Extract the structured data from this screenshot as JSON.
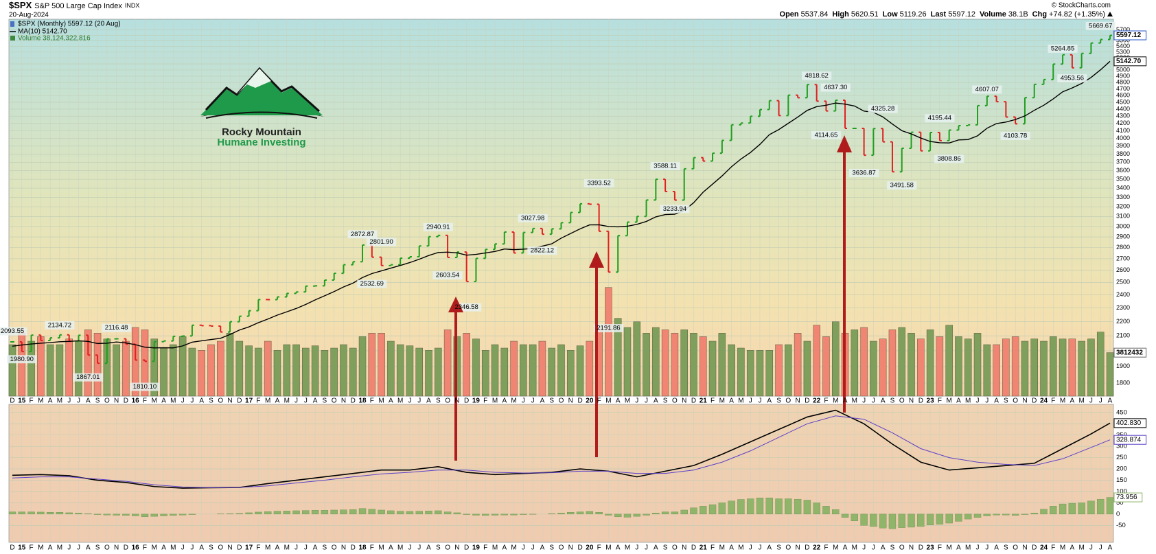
{
  "header": {
    "symbol": "$SPX",
    "name": "S&P 500 Large Cap Index",
    "exchange": "INDX",
    "date": "20-Aug-2024",
    "copyright": "© StockCharts.com",
    "quote": [
      {
        "label": "Open",
        "value": "5537.84"
      },
      {
        "label": "High",
        "value": "5620.51"
      },
      {
        "label": "Low",
        "value": "5119.26"
      },
      {
        "label": "Last",
        "value": "5597.12"
      },
      {
        "label": "Volume",
        "value": "38.1B"
      },
      {
        "label": "Chg",
        "value": "+74.82 (+1.35%)"
      }
    ]
  },
  "logo": {
    "line1": "Rocky Mountain",
    "line2": "Humane Investing"
  },
  "chart_data": [
    {
      "type": "ohlc",
      "title": "$SPX (Monthly) 5597.12 (20 Aug)",
      "log_scale": true,
      "grid": true,
      "up_color": "#1f9e1f",
      "down_color": "#e02020",
      "last_label": "5597.12",
      "categories": [
        "D",
        "15",
        "F",
        "M",
        "A",
        "M",
        "J",
        "J",
        "A",
        "S",
        "O",
        "N",
        "D",
        "16",
        "F",
        "M",
        "A",
        "M",
        "J",
        "J",
        "A",
        "S",
        "O",
        "N",
        "D",
        "17",
        "F",
        "M",
        "A",
        "M",
        "J",
        "J",
        "A",
        "S",
        "O",
        "N",
        "D",
        "18",
        "F",
        "M",
        "A",
        "M",
        "J",
        "J",
        "A",
        "S",
        "O",
        "N",
        "D",
        "19",
        "F",
        "M",
        "A",
        "M",
        "J",
        "J",
        "A",
        "S",
        "O",
        "N",
        "D",
        "20",
        "F",
        "M",
        "A",
        "M",
        "J",
        "J",
        "A",
        "S",
        "O",
        "N",
        "D",
        "21",
        "F",
        "M",
        "A",
        "M",
        "J",
        "J",
        "A",
        "S",
        "O",
        "N",
        "D",
        "22",
        "F",
        "M",
        "A",
        "M",
        "J",
        "J",
        "A",
        "S",
        "O",
        "N",
        "D",
        "23",
        "F",
        "M",
        "A",
        "M",
        "J",
        "J",
        "A",
        "S",
        "O",
        "N",
        "D",
        "24",
        "F",
        "M",
        "A",
        "M",
        "J",
        "J",
        "A"
      ],
      "close": [
        2059,
        1995,
        2105,
        2068,
        2086,
        2107,
        2063,
        2104,
        1972,
        1920,
        2079,
        2080,
        2044,
        1940,
        1932,
        2060,
        2065,
        2097,
        2099,
        2174,
        2171,
        2168,
        2126,
        2199,
        2239,
        2279,
        2364,
        2363,
        2384,
        2412,
        2423,
        2470,
        2472,
        2519,
        2575,
        2648,
        2674,
        2824,
        2714,
        2641,
        2648,
        2705,
        2718,
        2816,
        2902,
        2914,
        2712,
        2760,
        2507,
        2704,
        2784,
        2834,
        2946,
        2752,
        2942,
        2980,
        2926,
        2977,
        3038,
        3141,
        3231,
        3226,
        2954,
        2585,
        2912,
        3044,
        3100,
        3271,
        3500,
        3363,
        3270,
        3622,
        3756,
        3714,
        3811,
        3973,
        4181,
        4204,
        4298,
        4395,
        4523,
        4308,
        4605,
        4567,
        4766,
        4516,
        4374,
        4530,
        4132,
        4132,
        3785,
        4130,
        3955,
        3586,
        3872,
        4080,
        3840,
        4077,
        3970,
        4109,
        4169,
        4180,
        4450,
        4589,
        4508,
        4288,
        4194,
        4568,
        4770,
        4846,
        5096,
        5254,
        5036,
        5278,
        5460,
        5522,
        5597.12
      ],
      "series": [
        {
          "name": "MA(10) 5142.70",
          "value_label": "5142.70",
          "color": "#000000",
          "values": [
            2030,
            2038,
            2045,
            2050,
            2054,
            2060,
            2062,
            2066,
            2062,
            2048,
            2050,
            2058,
            2052,
            2040,
            2024,
            2019,
            2020,
            2019,
            2032,
            2057,
            2066,
            2075,
            2083,
            2109,
            2140,
            2162,
            2192,
            2218,
            2247,
            2271,
            2296,
            2326,
            2361,
            2393,
            2426,
            2463,
            2494,
            2540,
            2573,
            2596,
            2619,
            2642,
            2667,
            2696,
            2729,
            2756,
            2759,
            2753,
            2732,
            2739,
            2752,
            2765,
            2788,
            2782,
            2786,
            2792,
            2814,
            2835,
            2888,
            2932,
            2977,
            3016,
            3017,
            3000,
            2997,
            3003,
            3021,
            3050,
            3096,
            3119,
            3123,
            3162,
            3242,
            3355,
            3445,
            3538,
            3646,
            3739,
            3819,
            3922,
            4048,
            4116,
            4201,
            4287,
            4382,
            4436,
            4456,
            4488,
            4472,
            4445,
            4372,
            4354,
            4289,
            4191,
            4101,
            4058,
            4004,
            3959,
            3943,
            3940,
            3979,
            3984,
            4033,
            4134,
            4197,
            4218,
            4253,
            4303,
            4383,
            4456,
            4549,
            4656,
            4715,
            4784,
            4879,
            5002,
            5142.7
          ]
        }
      ],
      "volume": {
        "name": "Volume 38,124,322,816",
        "value_label": "3812432",
        "up_color": "#7f9f5c",
        "down_color": "#ef8572",
        "vlim": [
          0,
          120
        ],
        "values": [
          45,
          55,
          48,
          52,
          45,
          45,
          50,
          48,
          58,
          55,
          50,
          45,
          48,
          60,
          58,
          50,
          42,
          45,
          52,
          42,
          40,
          45,
          48,
          55,
          48,
          44,
          42,
          48,
          40,
          45,
          45,
          42,
          44,
          40,
          42,
          45,
          42,
          52,
          55,
          55,
          48,
          45,
          44,
          42,
          40,
          42,
          58,
          52,
          55,
          50,
          40,
          45,
          42,
          48,
          45,
          45,
          48,
          42,
          45,
          40,
          44,
          48,
          60,
          95,
          68,
          60,
          65,
          55,
          60,
          58,
          55,
          58,
          55,
          52,
          48,
          55,
          45,
          42,
          40,
          40,
          40,
          45,
          45,
          55,
          48,
          62,
          52,
          65,
          55,
          58,
          60,
          48,
          50,
          58,
          60,
          55,
          50,
          58,
          52,
          62,
          52,
          50,
          55,
          45,
          45,
          50,
          52,
          48,
          50,
          48,
          52,
          50,
          50,
          48,
          50,
          56,
          38
        ]
      },
      "ylim": [
        1725,
        5900
      ],
      "yticks": [
        1800,
        1900,
        2000,
        2100,
        2200,
        2300,
        2400,
        2500,
        2600,
        2700,
        2800,
        2900,
        3000,
        3100,
        3200,
        3300,
        3400,
        3500,
        3600,
        3700,
        3800,
        3900,
        4000,
        4100,
        4200,
        4300,
        4400,
        4500,
        4600,
        4700,
        4800,
        4900,
        5000,
        5100,
        5200,
        5300,
        5400,
        5500,
        5600,
        5700
      ],
      "annotations": [
        {
          "x": 0,
          "value": 2093.55,
          "label": "2093.55"
        },
        {
          "x": 1,
          "value": 1980.9,
          "label": "1980.90"
        },
        {
          "x": 5,
          "value": 2134.72,
          "label": "2134.72"
        },
        {
          "x": 8,
          "value": 1867.01,
          "label": "1867.01"
        },
        {
          "x": 11,
          "value": 2116.48,
          "label": "2116.48"
        },
        {
          "x": 14,
          "value": 1810.1,
          "label": "1810.10"
        },
        {
          "x": 37,
          "value": 2872.87,
          "label": "2872.87"
        },
        {
          "x": 38,
          "value": 2532.69,
          "label": "2532.69"
        },
        {
          "x": 39,
          "value": 2801.9,
          "label": "2801.90"
        },
        {
          "x": 45,
          "value": 2940.91,
          "label": "2940.91"
        },
        {
          "x": 46,
          "value": 2603.54,
          "label": "2603.54"
        },
        {
          "x": 48,
          "value": 2346.58,
          "label": "2346.58"
        },
        {
          "x": 55,
          "value": 3027.98,
          "label": "3027.98"
        },
        {
          "x": 56,
          "value": 2822.12,
          "label": "2822.12"
        },
        {
          "x": 62,
          "value": 3393.52,
          "label": "3393.52"
        },
        {
          "x": 63,
          "value": 2191.86,
          "label": "2191.86"
        },
        {
          "x": 69,
          "value": 3588.11,
          "label": "3588.11"
        },
        {
          "x": 70,
          "value": 3233.94,
          "label": "3233.94"
        },
        {
          "x": 85,
          "value": 4818.62,
          "label": "4818.62"
        },
        {
          "x": 86,
          "value": 4114.65,
          "label": "4114.65"
        },
        {
          "x": 87,
          "value": 4637.3,
          "label": "4637.30"
        },
        {
          "x": 90,
          "value": 3636.87,
          "label": "3636.87"
        },
        {
          "x": 92,
          "value": 4325.28,
          "label": "4325.28"
        },
        {
          "x": 94,
          "value": 3491.58,
          "label": "3491.58"
        },
        {
          "x": 98,
          "value": 4195.44,
          "label": "4195.44"
        },
        {
          "x": 99,
          "value": 3808.86,
          "label": "3808.86"
        },
        {
          "x": 103,
          "value": 4607.07,
          "label": "4607.07"
        },
        {
          "x": 106,
          "value": 4103.78,
          "label": "4103.78"
        },
        {
          "x": 111,
          "value": 5264.85,
          "label": "5264.85"
        },
        {
          "x": 112,
          "value": 4953.56,
          "label": "4953.56"
        },
        {
          "x": 115,
          "value": 5669.67,
          "label": "5669.67"
        }
      ]
    },
    {
      "type": "line",
      "grid": true,
      "ylim": [
        -125,
        486
      ],
      "yticks": [
        -50,
        0,
        50,
        100,
        150,
        200,
        250,
        300,
        350,
        400,
        450
      ],
      "series": [
        {
          "color": "#000000",
          "value_label": "402.830",
          "x": [
            0,
            3,
            6,
            9,
            12,
            15,
            18,
            21,
            24,
            27,
            30,
            33,
            36,
            39,
            42,
            45,
            48,
            51,
            54,
            57,
            60,
            63,
            66,
            69,
            72,
            75,
            78,
            81,
            84,
            87,
            90,
            93,
            96,
            99,
            102,
            105,
            108,
            111,
            114,
            116
          ],
          "values": [
            172,
            175,
            170,
            150,
            140,
            122,
            115,
            117,
            118,
            135,
            150,
            165,
            180,
            195,
            195,
            210,
            185,
            175,
            180,
            185,
            200,
            190,
            165,
            190,
            215,
            265,
            320,
            375,
            430,
            460,
            400,
            310,
            230,
            195,
            205,
            215,
            225,
            290,
            355,
            402.83
          ]
        },
        {
          "color": "#5a3fc8",
          "value_label": "328.874",
          "x": [
            0,
            3,
            6,
            9,
            12,
            15,
            18,
            21,
            24,
            27,
            30,
            33,
            36,
            39,
            42,
            45,
            48,
            51,
            54,
            57,
            60,
            63,
            66,
            69,
            72,
            75,
            78,
            81,
            84,
            87,
            90,
            93,
            96,
            99,
            102,
            105,
            108,
            111,
            114,
            116
          ],
          "values": [
            160,
            165,
            165,
            155,
            145,
            130,
            120,
            117,
            118,
            125,
            138,
            150,
            165,
            178,
            185,
            195,
            195,
            185,
            182,
            183,
            190,
            190,
            180,
            180,
            195,
            230,
            280,
            340,
            400,
            435,
            420,
            360,
            290,
            250,
            230,
            220,
            215,
            245,
            295,
            328.874
          ]
        }
      ],
      "histogram": {
        "color": "#8fb46a",
        "value_label": "73.956",
        "values": [
          10,
          10,
          10,
          9,
          8,
          8,
          6,
          5,
          2,
          -2,
          -4,
          -5,
          -6,
          -8,
          -12,
          -10,
          -8,
          -6,
          -4,
          -2,
          0,
          0,
          1,
          2,
          3,
          6,
          9,
          11,
          13,
          14,
          15,
          16,
          17,
          17,
          18,
          19,
          20,
          25,
          22,
          18,
          15,
          13,
          12,
          13,
          14,
          15,
          10,
          6,
          -2,
          -5,
          -6,
          -5,
          -4,
          -4,
          -2,
          -1,
          0,
          2,
          5,
          8,
          10,
          12,
          8,
          -5,
          -12,
          -14,
          -10,
          -5,
          5,
          10,
          10,
          18,
          28,
          35,
          42,
          50,
          58,
          65,
          68,
          72,
          72,
          68,
          68,
          66,
          62,
          50,
          35,
          20,
          -15,
          -30,
          -50,
          -55,
          -62,
          -65,
          -60,
          -58,
          -55,
          -48,
          -45,
          -40,
          -32,
          -22,
          -15,
          -8,
          -4,
          -4,
          -6,
          -2,
          5,
          22,
          35,
          45,
          48,
          50,
          58,
          66,
          73.956
        ]
      }
    }
  ]
}
